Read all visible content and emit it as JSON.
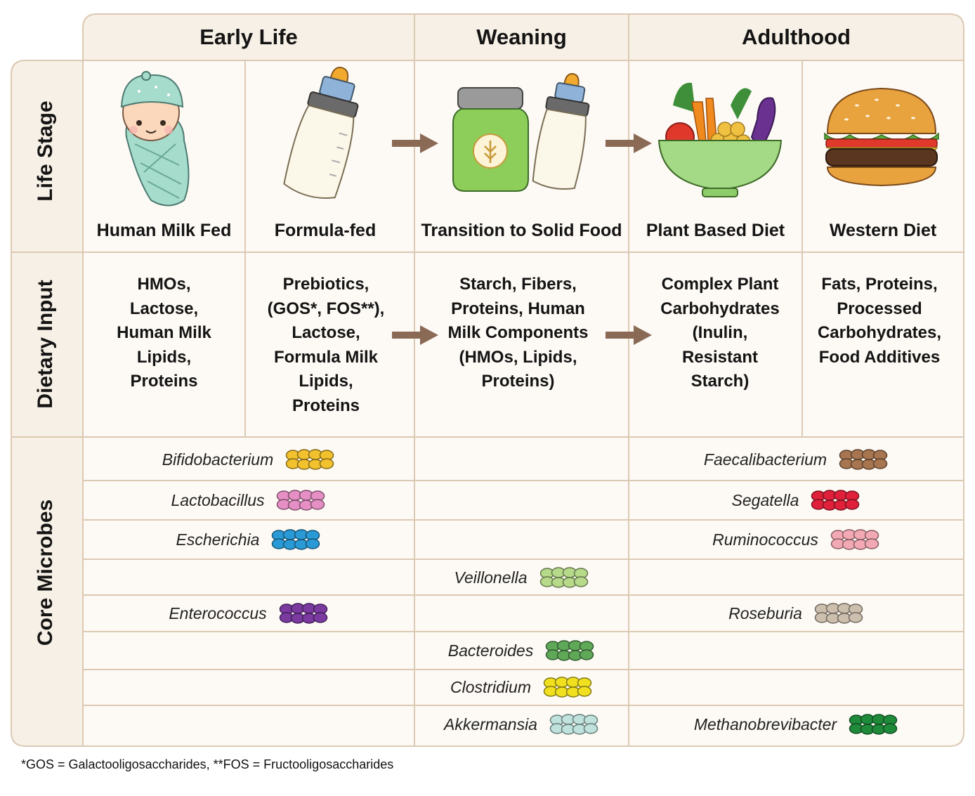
{
  "columns": {
    "early_life": "Early Life",
    "weaning": "Weaning",
    "adulthood": "Adulthood"
  },
  "row_labels": {
    "life_stage": "Life Stage",
    "dietary_input": "Dietary Input",
    "core_microbes": "Core Microbes"
  },
  "life_stage": {
    "human_milk_fed": "Human Milk Fed",
    "formula_fed": "Formula-fed",
    "transition": "Transition to Solid Food",
    "plant_based": "Plant Based Diet",
    "western": "Western Diet"
  },
  "dietary_input": {
    "human_milk_fed": "HMOs,\nLactose,\nHuman Milk\nLipids,\nProteins",
    "formula_fed": "Prebiotics,\n(GOS*, FOS**),\nLactose,\nFormula Milk\nLipids,\nProteins",
    "transition": "Starch, Fibers,\nProteins, Human\nMilk Components\n(HMOs, Lipids,\nProteins)",
    "plant_based": "Complex Plant\nCarbohydrates\n(Inulin,\nResistant\nStarch)",
    "western": "Fats, Proteins,\nProcessed\nCarbohydrates,\nFood Additives"
  },
  "microbes": {
    "early_life": [
      {
        "name": "Bifidobacterium",
        "row": 0,
        "color": "#f2c12e"
      },
      {
        "name": "Lactobacillus",
        "row": 1,
        "color": "#e58fc4"
      },
      {
        "name": "Escherichia",
        "row": 2,
        "color": "#2a9ad6"
      },
      {
        "name": "Enterococcus",
        "row": 4,
        "color": "#7a3aa0"
      }
    ],
    "weaning": [
      {
        "name": "Veillonella",
        "row": 3,
        "color": "#b6d98a"
      },
      {
        "name": "Bacteroides",
        "row": 5,
        "color": "#5ea858"
      },
      {
        "name": "Clostridium",
        "row": 6,
        "color": "#f0e020"
      },
      {
        "name": "Akkermansia",
        "row": 7,
        "color": "#bfe2dc"
      }
    ],
    "adulthood": [
      {
        "name": "Faecalibacterium",
        "row": 0,
        "color": "#a77550"
      },
      {
        "name": "Segatella",
        "row": 1,
        "color": "#e0203a"
      },
      {
        "name": "Ruminococcus",
        "row": 2,
        "color": "#f3a9b4"
      },
      {
        "name": "Roseburia",
        "row": 4,
        "color": "#cdbfad"
      },
      {
        "name": "Methanobrevibacter",
        "row": 7,
        "color": "#1f8a3a"
      }
    ]
  },
  "footnote": "*GOS = Galactooligosaccharides, **FOS = Fructooligosaccharides",
  "colors": {
    "grid_line": "#dcc9b3",
    "table_bg": "#fdfaf5",
    "header_bg": "#f7f0e6",
    "arrow": "#8a6a55"
  },
  "icons": {
    "human_milk_fed": "swaddled-baby-icon",
    "formula_fed": "baby-bottle-icon",
    "transition": "baby-food-jar-and-bottle-icon",
    "plant_based": "vegetable-bowl-icon",
    "western": "hamburger-icon"
  }
}
